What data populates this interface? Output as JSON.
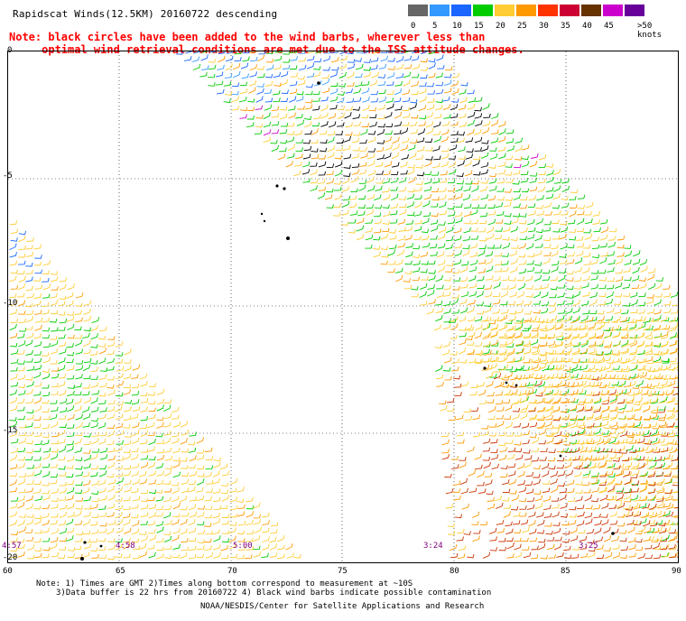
{
  "title": "Rapidscat Winds(12.5KM) 20160722 descending",
  "note_lines": [
    "Note: black circles have been added to the wind barbs, wherever less than",
    "     optimal wind retrieval conditions are met due to the ISS attitude changes."
  ],
  "colorbar": {
    "unit": ">50 knots",
    "labels": [
      "0",
      "5",
      "10",
      "15",
      "20",
      "25",
      "30",
      "35",
      "40",
      "45"
    ],
    "colors": [
      "#666666",
      "#3399ff",
      "#1a66ff",
      "#00cc00",
      "#ffcc33",
      "#ff9900",
      "#ff3300",
      "#cc0033",
      "#663300",
      "#cc00cc",
      "#660099"
    ]
  },
  "map": {
    "lat_labels": [
      "0",
      "-5",
      "-10",
      "-15",
      "-20"
    ],
    "lon_labels": [
      "60",
      "65",
      "70",
      "75",
      "80",
      "85",
      "90"
    ],
    "time_labels": [
      "4:57",
      "4:58",
      "5:00",
      "3:24",
      "3:25"
    ],
    "barb_colors": {
      "calm": "#666666",
      "light_blue": "#3399ff",
      "blue": "#1a66ff",
      "green": "#00cc00",
      "yellow": "#ffcc33",
      "orange": "#ff9900",
      "red": "#cc3300",
      "contaminated": "#000000",
      "magenta": "#cc00cc"
    }
  },
  "footnotes": [
    "Note: 1) Times are GMT 2)Times along bottom correspond to measurement at ~10S",
    "3)Data buffer is 22 hrs from 20160722 4) Black wind barbs indicate possible contamination"
  ],
  "credit": "NOAA/NESDIS/Center for Satellite Applications and Research"
}
